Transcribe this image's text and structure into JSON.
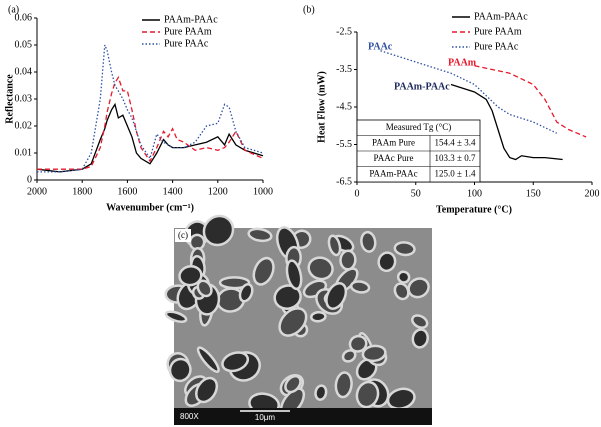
{
  "chart_data": [
    {
      "type": "line",
      "panel_label": "(a)",
      "x_label": "Wavenumber (cm⁻¹)",
      "y_label": "Reflectance",
      "x": [
        2000,
        1900,
        1800,
        1760,
        1720,
        1700,
        1690,
        1670,
        1655,
        1640,
        1620,
        1600,
        1580,
        1560,
        1540,
        1500,
        1470,
        1440,
        1420,
        1400,
        1380,
        1350,
        1300,
        1250,
        1200,
        1170,
        1150,
        1120,
        1080,
        1000
      ],
      "series": [
        {
          "name": "PAAm-PAAc",
          "color": "#000000",
          "style": "solid",
          "values": [
            0.004,
            0.003,
            0.004,
            0.006,
            0.015,
            0.019,
            0.022,
            0.026,
            0.028,
            0.023,
            0.024,
            0.02,
            0.016,
            0.01,
            0.008,
            0.006,
            0.01,
            0.015,
            0.013,
            0.012,
            0.012,
            0.012,
            0.013,
            0.014,
            0.016,
            0.013,
            0.017,
            0.013,
            0.011,
            0.009
          ]
        },
        {
          "name": "Pure PAAm",
          "color": "#e8192c",
          "style": "dashed",
          "values": [
            0.004,
            0.004,
            0.004,
            0.005,
            0.012,
            0.02,
            0.025,
            0.032,
            0.036,
            0.038,
            0.033,
            0.033,
            0.026,
            0.018,
            0.012,
            0.007,
            0.012,
            0.018,
            0.016,
            0.019,
            0.015,
            0.014,
            0.011,
            0.012,
            0.011,
            0.012,
            0.014,
            0.018,
            0.011,
            0.008
          ]
        },
        {
          "name": "Pure PAAc",
          "color": "#2e4fa3",
          "style": "dotted",
          "values": [
            0.003,
            0.003,
            0.004,
            0.01,
            0.03,
            0.05,
            0.048,
            0.04,
            0.035,
            0.033,
            0.03,
            0.026,
            0.023,
            0.018,
            0.013,
            0.008,
            0.017,
            0.014,
            0.013,
            0.012,
            0.012,
            0.012,
            0.014,
            0.02,
            0.021,
            0.028,
            0.027,
            0.018,
            0.012,
            0.01
          ]
        }
      ],
      "xlim": [
        2000,
        1000
      ],
      "xticks": [
        2000,
        1800,
        1600,
        1400,
        1200,
        1000
      ],
      "ylim": [
        0,
        0.06
      ],
      "yticks": [
        0,
        0.01,
        0.02,
        0.03,
        0.04,
        0.05,
        0.06
      ],
      "legend": "upper right"
    },
    {
      "type": "line",
      "panel_label": "(b)",
      "x_label": "Temperature (°C)",
      "y_label": "Heat Flow (mW)",
      "series": [
        {
          "name": "PAAm-PAAc",
          "color": "#000000",
          "style": "solid",
          "x": [
            80,
            100,
            110,
            115,
            120,
            125,
            130,
            135,
            140,
            150,
            160,
            175
          ],
          "values": [
            -3.9,
            -4.1,
            -4.3,
            -4.6,
            -5.1,
            -5.6,
            -5.85,
            -5.9,
            -5.8,
            -5.85,
            -5.85,
            -5.9
          ]
        },
        {
          "name": "Pure PAAm",
          "color": "#e8192c",
          "style": "dashed",
          "x": [
            100,
            115,
            130,
            150,
            160,
            170,
            180,
            195
          ],
          "values": [
            -3.4,
            -3.5,
            -3.6,
            -3.9,
            -4.3,
            -4.9,
            -5.1,
            -5.3
          ]
        },
        {
          "name": "Pure PAAc",
          "color": "#2e4fa3",
          "style": "dotted",
          "x": [
            20,
            40,
            60,
            80,
            100,
            110,
            120,
            130,
            150,
            170
          ],
          "values": [
            -3.0,
            -3.2,
            -3.4,
            -3.6,
            -3.9,
            -4.2,
            -4.5,
            -4.7,
            -4.9,
            -5.2
          ]
        }
      ],
      "annotations": [
        {
          "text": "PAAc",
          "color": "#2e4fa3"
        },
        {
          "text": "PAAm",
          "color": "#e8192c"
        },
        {
          "text": "PAAm-PAAc",
          "color": "#1f2a5c"
        }
      ],
      "table": {
        "header": "Measured Tg (°C)",
        "rows": [
          [
            "PAAm Pure",
            "154.4 ± 3.4"
          ],
          [
            "PAAc Pure",
            "103.3 ± 0.7"
          ],
          [
            "PAAm-PAAc",
            "125.0 ± 1.4"
          ]
        ]
      },
      "xlim": [
        0,
        200
      ],
      "xticks": [
        0,
        50,
        100,
        150,
        200
      ],
      "ylim": [
        -6.5,
        -2.5
      ],
      "yticks": [
        -6.5,
        -5.5,
        -4.5,
        -3.5,
        -2.5
      ],
      "legend": "upper right"
    }
  ],
  "panel_c": {
    "label": "(c)",
    "magnification": "800X",
    "scale_bar": "10μm"
  }
}
